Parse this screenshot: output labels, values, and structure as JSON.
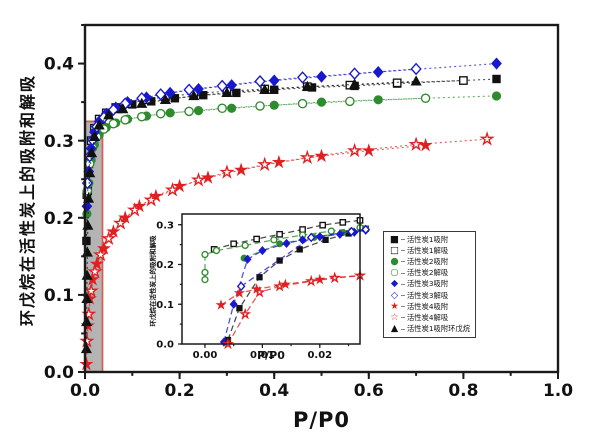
{
  "figure": {
    "xlabel": "P/P0",
    "ylabel": "环戊烷在活性炭上的吸附和解吸",
    "background": "#ffffff"
  },
  "colors": {
    "black": "#111111",
    "green": "#2e8b2e",
    "blue": "#1818cf",
    "red": "#e02020",
    "highlight_fill": "#b4b4b4",
    "highlight_stroke": "#d85c52"
  },
  "legend": {
    "position": "center-right",
    "items": [
      {
        "glyph": "■",
        "label": "活性炭1吸附",
        "color": "#111111"
      },
      {
        "glyph": "□",
        "label": "活性炭1解吸",
        "color": "#111111"
      },
      {
        "glyph": "●",
        "label": "活性炭2吸附",
        "color": "#2e8b2e"
      },
      {
        "glyph": "○",
        "label": "活性炭2解吸",
        "color": "#2e8b2e"
      },
      {
        "glyph": "◆",
        "label": "活性炭3吸附",
        "color": "#1818cf"
      },
      {
        "glyph": "◇",
        "label": "活性炭3解吸",
        "color": "#1818cf"
      },
      {
        "glyph": "★",
        "label": "活性炭4吸附",
        "color": "#e02020"
      },
      {
        "glyph": "☆",
        "label": "活性炭4解吸",
        "color": "#e02020"
      },
      {
        "glyph": "▲",
        "label": "活性炭1吸附环戊烷",
        "color": "#111111"
      }
    ]
  },
  "chart_data": [
    {
      "id": "main",
      "type": "line",
      "title": "",
      "xlabel": "P/P0",
      "ylabel": "环戊烷在活性炭上的吸附和解吸",
      "grid": false,
      "xlim": [
        0,
        1.0
      ],
      "ylim": [
        0,
        0.45
      ],
      "xticks": {
        "values": [
          0,
          0.2,
          0.4,
          0.6,
          0.8,
          1.0
        ],
        "labels": [
          "0.0",
          "0.2",
          "0.4",
          "0.6",
          "0.8",
          "1.0"
        ],
        "minor_step": 0.1
      },
      "yticks": {
        "values": [
          0,
          0.1,
          0.2,
          0.3,
          0.4
        ],
        "labels": [
          "0.0",
          "0.1",
          "0.2",
          "0.3",
          "0.4"
        ],
        "minor_step": 0.05
      },
      "highlight_box": {
        "x0": 0,
        "x1": 0.037,
        "y0": 0,
        "y1": 0.325,
        "fill": "#b4b4b4",
        "stroke": "#d85c52"
      },
      "series": [
        {
          "name": "活性炭1吸附",
          "marker": "square",
          "fill": "filled",
          "color": "#111111",
          "line": "dotted",
          "x": [
            0.003,
            0.006,
            0.01,
            0.016,
            0.024,
            0.035,
            0.05,
            0.07,
            0.1,
            0.14,
            0.19,
            0.25,
            0.32,
            0.4,
            0.48,
            0.57,
            0.66,
            0.87
          ],
          "y": [
            0.17,
            0.235,
            0.275,
            0.3,
            0.315,
            0.327,
            0.335,
            0.341,
            0.347,
            0.351,
            0.355,
            0.359,
            0.362,
            0.366,
            0.369,
            0.371,
            0.374,
            0.38
          ]
        },
        {
          "name": "活性炭1解吸",
          "marker": "square",
          "fill": "open",
          "color": "#111111",
          "line": "dotted",
          "x": [
            0.004,
            0.008,
            0.013,
            0.02,
            0.03,
            0.045,
            0.065,
            0.09,
            0.13,
            0.17,
            0.23,
            0.3,
            0.38,
            0.47,
            0.56,
            0.66,
            0.8
          ],
          "y": [
            0.23,
            0.27,
            0.3,
            0.316,
            0.328,
            0.336,
            0.343,
            0.348,
            0.353,
            0.357,
            0.361,
            0.364,
            0.367,
            0.37,
            0.372,
            0.375,
            0.378
          ]
        },
        {
          "name": "活性炭2吸附",
          "marker": "circle",
          "fill": "filled",
          "color": "#2e8b2e",
          "line": "dotted",
          "x": [
            0.004,
            0.008,
            0.013,
            0.02,
            0.03,
            0.045,
            0.065,
            0.09,
            0.13,
            0.18,
            0.24,
            0.31,
            0.4,
            0.5,
            0.62,
            0.87
          ],
          "y": [
            0.205,
            0.245,
            0.275,
            0.295,
            0.308,
            0.317,
            0.323,
            0.328,
            0.332,
            0.336,
            0.339,
            0.342,
            0.346,
            0.35,
            0.353,
            0.358
          ]
        },
        {
          "name": "活性炭2解吸",
          "marker": "circle",
          "fill": "open",
          "color": "#2e8b2e",
          "line": "dotted",
          "x": [
            0.005,
            0.01,
            0.016,
            0.025,
            0.04,
            0.06,
            0.085,
            0.12,
            0.16,
            0.22,
            0.29,
            0.37,
            0.46,
            0.56,
            0.72
          ],
          "y": [
            0.235,
            0.27,
            0.291,
            0.305,
            0.315,
            0.322,
            0.327,
            0.331,
            0.335,
            0.338,
            0.342,
            0.345,
            0.348,
            0.351,
            0.355
          ]
        },
        {
          "name": "活性炭3吸附",
          "marker": "diamond",
          "fill": "filled",
          "color": "#1818cf",
          "line": "dotted",
          "x": [
            0.004,
            0.008,
            0.013,
            0.02,
            0.03,
            0.045,
            0.065,
            0.09,
            0.13,
            0.18,
            0.24,
            0.31,
            0.4,
            0.5,
            0.62,
            0.87
          ],
          "y": [
            0.215,
            0.26,
            0.29,
            0.311,
            0.325,
            0.335,
            0.343,
            0.35,
            0.356,
            0.362,
            0.367,
            0.372,
            0.378,
            0.383,
            0.389,
            0.4
          ]
        },
        {
          "name": "活性炭3解吸",
          "marker": "diamond",
          "fill": "open",
          "color": "#1818cf",
          "line": "dotted",
          "x": [
            0.005,
            0.01,
            0.016,
            0.025,
            0.04,
            0.06,
            0.085,
            0.12,
            0.16,
            0.22,
            0.29,
            0.37,
            0.46,
            0.57,
            0.7
          ],
          "y": [
            0.245,
            0.28,
            0.301,
            0.318,
            0.33,
            0.34,
            0.348,
            0.355,
            0.36,
            0.366,
            0.371,
            0.377,
            0.382,
            0.387,
            0.393
          ]
        },
        {
          "name": "活性炭4吸附",
          "marker": "star",
          "fill": "filled",
          "color": "#e02020",
          "line": "dotted",
          "x": [
            0.003,
            0.006,
            0.01,
            0.016,
            0.025,
            0.04,
            0.06,
            0.085,
            0.115,
            0.15,
            0.2,
            0.26,
            0.33,
            0.41,
            0.5,
            0.6,
            0.72
          ],
          "y": [
            0.01,
            0.06,
            0.095,
            0.12,
            0.14,
            0.16,
            0.182,
            0.2,
            0.215,
            0.228,
            0.241,
            0.252,
            0.262,
            0.272,
            0.28,
            0.287,
            0.294
          ]
        },
        {
          "name": "活性炭4解吸",
          "marker": "star",
          "fill": "open",
          "color": "#e02020",
          "line": "dotted",
          "x": [
            0.004,
            0.008,
            0.013,
            0.021,
            0.033,
            0.05,
            0.075,
            0.105,
            0.14,
            0.185,
            0.24,
            0.3,
            0.38,
            0.47,
            0.57,
            0.7,
            0.85
          ],
          "y": [
            0.04,
            0.075,
            0.105,
            0.13,
            0.152,
            0.173,
            0.193,
            0.21,
            0.223,
            0.236,
            0.249,
            0.259,
            0.269,
            0.278,
            0.287,
            0.295,
            0.302
          ]
        },
        {
          "name": "活性炭1吸附环戊烷",
          "marker": "triangle",
          "fill": "filled",
          "color": "#111111",
          "line": "dotted",
          "x": [
            0.003,
            0.0035,
            0.004,
            0.0045,
            0.005,
            0.006,
            0.0075,
            0.01,
            0.014,
            0.02,
            0.03,
            0.05,
            0.08,
            0.12,
            0.17,
            0.23,
            0.3,
            0.38,
            0.47,
            0.57,
            0.7
          ],
          "y": [
            0.03,
            0.065,
            0.095,
            0.125,
            0.155,
            0.19,
            0.225,
            0.258,
            0.284,
            0.305,
            0.32,
            0.333,
            0.341,
            0.348,
            0.353,
            0.358,
            0.362,
            0.366,
            0.37,
            0.373,
            0.377
          ]
        }
      ]
    },
    {
      "id": "inset",
      "type": "line",
      "title": "",
      "xlabel": "P/P0",
      "ylabel": "环戊烷在活性炭上的吸附和解吸",
      "grid": false,
      "xlim": [
        -0.004,
        0.027
      ],
      "ylim": [
        0,
        0.327
      ],
      "xticks": {
        "values": [
          0,
          0.01,
          0.02
        ],
        "labels": [
          "0.00",
          "0.01",
          "0.02"
        ],
        "minor_step": 0.005
      },
      "yticks": {
        "values": [
          0,
          0.1,
          0.2,
          0.3
        ],
        "labels": [
          "0.0",
          "0.1",
          "0.2",
          "0.3"
        ],
        "minor_step": 0.05
      },
      "series": [
        {
          "name": "活性炭1解吸",
          "marker": "square",
          "fill": "open",
          "color": "#111111",
          "line": "dashed",
          "x": [
            0.0016,
            0.005,
            0.009,
            0.013,
            0.017,
            0.0205,
            0.024,
            0.027
          ],
          "y": [
            0.238,
            0.252,
            0.264,
            0.276,
            0.288,
            0.299,
            0.306,
            0.311
          ]
        },
        {
          "name": "活性炭1吸附",
          "marker": "square",
          "fill": "filled",
          "color": "#111111",
          "line": "dashed",
          "x": [
            0.004,
            0.006,
            0.0095,
            0.013,
            0.0165,
            0.021,
            0.025,
            0.028
          ],
          "y": [
            0.01,
            0.09,
            0.168,
            0.21,
            0.238,
            0.262,
            0.278,
            0.29
          ]
        },
        {
          "name": "活性炭2解吸",
          "marker": "circle",
          "fill": "open",
          "color": "#2e8b2e",
          "line": "dashed",
          "x": [
            0.0,
            0.0,
            0.0,
            0.002,
            0.007,
            0.012,
            0.017,
            0.022,
            0.027
          ],
          "y": [
            0.162,
            0.18,
            0.225,
            0.235,
            0.248,
            0.262,
            0.274,
            0.284,
            0.293
          ]
        },
        {
          "name": "活性炭2吸附",
          "marker": "circle",
          "fill": "filled",
          "color": "#2e8b2e",
          "line": "dashed",
          "x": [
            0.0068,
            0.013,
            0.019,
            0.024,
            0.028
          ],
          "y": [
            0.216,
            0.252,
            0.268,
            0.28,
            0.29
          ]
        },
        {
          "name": "活性炭3吸附",
          "marker": "diamond",
          "fill": "filled",
          "color": "#1818cf",
          "line": "dashed",
          "x": [
            0.0033,
            0.005,
            0.0074,
            0.01,
            0.0142,
            0.017,
            0.02,
            0.0235,
            0.026,
            0.028
          ],
          "y": [
            0.005,
            0.1,
            0.213,
            0.235,
            0.253,
            0.262,
            0.27,
            0.276,
            0.281,
            0.286
          ]
        },
        {
          "name": "活性炭3解吸",
          "marker": "diamond",
          "fill": "open",
          "color": "#1818cf",
          "line": "dashed",
          "x": [
            0.0063,
            0.0185,
            0.0255,
            0.028
          ],
          "y": [
            0.145,
            0.268,
            0.283,
            0.288
          ]
        },
        {
          "name": "活性炭4吸附",
          "marker": "star",
          "fill": "filled",
          "color": "#e02020",
          "line": "dashed",
          "x": [
            0.0028,
            0.006,
            0.009,
            0.014,
            0.02,
            0.0226,
            0.027
          ],
          "y": [
            0.098,
            0.128,
            0.138,
            0.15,
            0.162,
            0.167,
            0.172
          ]
        },
        {
          "name": "活性炭4解吸",
          "marker": "star",
          "fill": "open",
          "color": "#e02020",
          "line": "dashed",
          "x": [
            0.004,
            0.007,
            0.0095,
            0.013,
            0.0185,
            0.0226,
            0.027
          ],
          "y": [
            0.0,
            0.075,
            0.13,
            0.145,
            0.158,
            0.166,
            0.172
          ]
        }
      ]
    }
  ]
}
